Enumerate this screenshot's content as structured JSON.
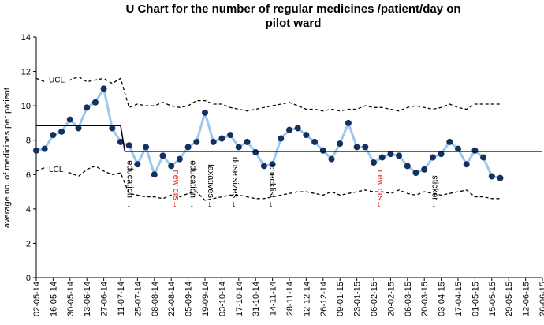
{
  "chart_data": {
    "type": "line",
    "title": "U Chart for the number of regular medicines /patient/day on pilot ward",
    "title_lines": [
      "U Chart for the number of regular medicines /patient/day on",
      "pilot ward"
    ],
    "ylabel": "average no. of medicines per patient",
    "xlabel": "",
    "ylim": [
      0,
      14
    ],
    "yticks": [
      0,
      2,
      4,
      6,
      8,
      10,
      12,
      14
    ],
    "xlim": [
      0,
      60
    ],
    "x_tick_labels": [
      "02-05-14",
      "16-05-14",
      "30-05-14",
      "13-06-14",
      "27-06-14",
      "11-07-14",
      "25-07-14",
      "08-08-14",
      "22-08-14",
      "05-09-14",
      "19-09-14",
      "03-10-14",
      "17-10-14",
      "31-10-14",
      "14-11-14",
      "28-11-14",
      "12-12-14",
      "26-12-14",
      "09-01-15",
      "23-01-15",
      "06-02-15",
      "20-02-15",
      "06-03-15",
      "20-03-15",
      "03-04-15",
      "17-04-15",
      "01-05-15",
      "15-05-15",
      "29-05-15",
      "12-06-15",
      "26-06-15"
    ],
    "series": [
      {
        "name": "",
        "style": "line-markers",
        "line_color": "#9cc8ec",
        "marker_color": "#13305e",
        "x": [
          0,
          1,
          2,
          3,
          4,
          5,
          6,
          7,
          8,
          9,
          10,
          11,
          12,
          13,
          14,
          15,
          16,
          17,
          18,
          19,
          20,
          21,
          22,
          23,
          24,
          25,
          26,
          27,
          28,
          29,
          30,
          31,
          32,
          33,
          34,
          35,
          36,
          37,
          38,
          39,
          40,
          41,
          42,
          43,
          44,
          45,
          46,
          47,
          48,
          49,
          50,
          51,
          52,
          53,
          54,
          55
        ],
        "values": [
          7.4,
          7.5,
          8.3,
          8.5,
          9.2,
          8.7,
          9.9,
          10.2,
          11.0,
          8.7,
          7.9,
          7.7,
          6.6,
          7.6,
          6.0,
          7.1,
          6.5,
          6.9,
          7.6,
          7.9,
          9.6,
          7.9,
          8.1,
          8.3,
          7.6,
          7.9,
          7.3,
          6.5,
          6.6,
          8.1,
          8.6,
          8.7,
          8.3,
          7.9,
          7.4,
          6.9,
          7.8,
          9.0,
          7.6,
          7.6,
          6.7,
          7.0,
          7.2,
          7.1,
          6.5,
          6.1,
          6.3,
          7.0,
          7.2,
          7.9,
          7.5,
          6.6,
          7.4,
          7.0,
          5.9,
          5.8
        ]
      },
      {
        "name": "",
        "style": "solid",
        "line_color": "#000000",
        "x": [
          0,
          10,
          10.5,
          60
        ],
        "values": [
          8.85,
          8.85,
          7.35,
          7.35
        ]
      },
      {
        "name": "UCL",
        "style": "dashed",
        "line_color": "#000000",
        "x": [
          0,
          1,
          4,
          5,
          6,
          7,
          8,
          9,
          10,
          11,
          12,
          13,
          14,
          15,
          16,
          17,
          18,
          19,
          20,
          21,
          22,
          23,
          24,
          25,
          26,
          27,
          28,
          29,
          30,
          31,
          32,
          33,
          34,
          35,
          36,
          37,
          38,
          39,
          40,
          41,
          42,
          43,
          44,
          45,
          46,
          47,
          48,
          49,
          50,
          51,
          52,
          53,
          54,
          55
        ],
        "values": [
          11.6,
          11.4,
          11.5,
          11.7,
          11.4,
          11.5,
          11.6,
          11.3,
          11.6,
          9.9,
          10.1,
          10.0,
          10.0,
          10.2,
          10.0,
          9.9,
          10.0,
          10.3,
          10.3,
          10.1,
          10.1,
          9.9,
          9.8,
          9.7,
          9.8,
          9.9,
          10.0,
          10.1,
          10.2,
          10.0,
          9.8,
          9.8,
          9.7,
          9.8,
          9.7,
          9.8,
          9.8,
          10.0,
          9.9,
          9.9,
          9.8,
          9.7,
          9.9,
          10.0,
          9.9,
          9.8,
          9.9,
          10.1,
          9.9,
          9.8,
          10.1,
          10.1,
          10.1,
          10.1
        ]
      },
      {
        "name": "LCL",
        "style": "dashed",
        "line_color": "#000000",
        "x": [
          0,
          1,
          4,
          5,
          6,
          7,
          8,
          9,
          10,
          11,
          12,
          13,
          14,
          15,
          16,
          17,
          18,
          19,
          20,
          21,
          22,
          23,
          24,
          25,
          26,
          27,
          28,
          29,
          30,
          31,
          32,
          33,
          34,
          35,
          36,
          37,
          38,
          39,
          40,
          41,
          42,
          43,
          44,
          45,
          46,
          47,
          48,
          49,
          50,
          51,
          52,
          53,
          54,
          55
        ],
        "values": [
          6.2,
          6.4,
          6.1,
          5.9,
          6.3,
          6.5,
          6.2,
          6.0,
          6.1,
          4.9,
          4.8,
          4.7,
          4.7,
          4.6,
          4.8,
          4.7,
          4.9,
          5.0,
          4.5,
          4.6,
          4.7,
          4.8,
          4.8,
          4.7,
          4.6,
          4.6,
          4.7,
          4.8,
          4.9,
          5.0,
          5.0,
          4.9,
          4.8,
          5.0,
          4.8,
          4.9,
          5.0,
          5.1,
          5.0,
          5.0,
          4.9,
          5.1,
          4.9,
          4.8,
          5.0,
          4.9,
          4.8,
          4.9,
          5.0,
          5.1,
          4.7,
          4.7,
          4.6,
          4.6
        ]
      }
    ],
    "control_limit_labels": [
      {
        "text": "UCL",
        "x": 1.5,
        "y": 11.5
      },
      {
        "text": "LCL",
        "x": 1.5,
        "y": 6.3
      }
    ],
    "annotations": [
      {
        "text": "education →",
        "x": 10.4,
        "color": "#000000"
      },
      {
        "text": "new drs→",
        "x": 15.9,
        "color": "#e2231a"
      },
      {
        "text": "education →",
        "x": 17.9,
        "color": "#000000"
      },
      {
        "text": "laxatives →",
        "x": 20.0,
        "color": "#000000"
      },
      {
        "text": "dose sizes →",
        "x": 22.9,
        "color": "#000000"
      },
      {
        "text": "checklist →",
        "x": 27.3,
        "color": "#000000"
      },
      {
        "text": "new drs→",
        "x": 40.1,
        "color": "#e2231a"
      },
      {
        "text": "sticker→",
        "x": 46.6,
        "color": "#000000"
      }
    ],
    "grid": false,
    "legend": "none"
  }
}
